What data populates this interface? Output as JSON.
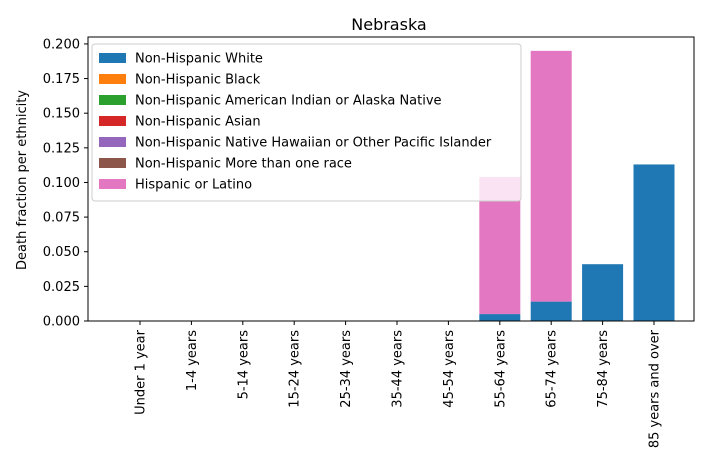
{
  "chart_data": {
    "type": "bar",
    "stacked": true,
    "title": "Nebraska",
    "xlabel": "",
    "ylabel": "Death fraction per ethnicity",
    "ylim": [
      0,
      0.205
    ],
    "yticks": [
      "0.000",
      "0.025",
      "0.050",
      "0.075",
      "0.100",
      "0.125",
      "0.150",
      "0.175",
      "0.200"
    ],
    "categories": [
      "Under 1 year",
      "1-4 years",
      "5-14 years",
      "15-24 years",
      "25-34 years",
      "35-44 years",
      "45-54 years",
      "55-64 years",
      "65-74 years",
      "75-84 years",
      "85 years and over"
    ],
    "series": [
      {
        "name": "Non-Hispanic White",
        "color": "#1f77b4",
        "values": [
          0,
          0,
          0,
          0,
          0,
          0,
          0,
          0.005,
          0.014,
          0.041,
          0.113
        ]
      },
      {
        "name": "Non-Hispanic Black",
        "color": "#ff7f0e",
        "values": [
          0,
          0,
          0,
          0,
          0,
          0,
          0,
          0,
          0,
          0,
          0
        ]
      },
      {
        "name": "Non-Hispanic American Indian or Alaska Native",
        "color": "#2ca02c",
        "values": [
          0,
          0,
          0,
          0,
          0,
          0,
          0,
          0,
          0,
          0,
          0
        ]
      },
      {
        "name": "Non-Hispanic Asian",
        "color": "#d62728",
        "values": [
          0,
          0,
          0,
          0,
          0,
          0,
          0,
          0,
          0,
          0,
          0
        ]
      },
      {
        "name": "Non-Hispanic Native Hawaiian or Other Pacific Islander",
        "color": "#9467bd",
        "values": [
          0,
          0,
          0,
          0,
          0,
          0,
          0,
          0,
          0,
          0,
          0
        ]
      },
      {
        "name": "Non-Hispanic More than one race",
        "color": "#8c564b",
        "values": [
          0,
          0,
          0,
          0,
          0,
          0,
          0,
          0,
          0,
          0,
          0
        ]
      },
      {
        "name": "Hispanic or Latino",
        "color": "#e377c2",
        "values": [
          0,
          0,
          0,
          0,
          0,
          0,
          0,
          0.099,
          0.181,
          0,
          0
        ]
      }
    ],
    "legend_position": "top-left",
    "grid": false
  }
}
